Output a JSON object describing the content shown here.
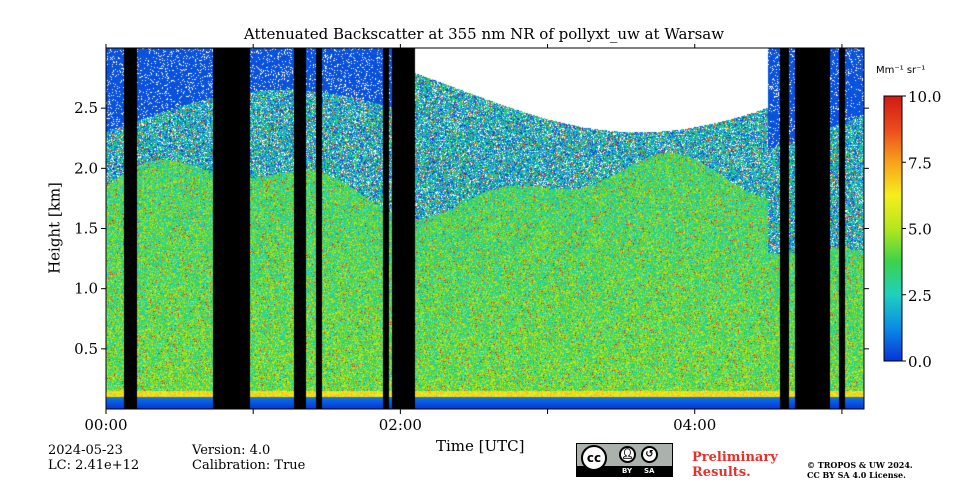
{
  "chart_data": {
    "type": "heatmap",
    "title": "Attenuated Backscatter at 355 nm NR of pollyxt_uw at Warsaw",
    "xlabel": "Time [UTC]",
    "ylabel": "Height [km]",
    "xlim_hours": [
      0.0,
      5.15
    ],
    "ylim_km": [
      0.0,
      3.0
    ],
    "x_ticks": [
      {
        "value": 0,
        "label": "00:00"
      },
      {
        "value": 1,
        "label": ""
      },
      {
        "value": 2,
        "label": "02:00"
      },
      {
        "value": 3,
        "label": ""
      },
      {
        "value": 4,
        "label": "04:00"
      },
      {
        "value": 5,
        "label": ""
      }
    ],
    "y_ticks": [
      {
        "value": 0.5,
        "label": "0.5"
      },
      {
        "value": 1.0,
        "label": "1.0"
      },
      {
        "value": 1.5,
        "label": "1.5"
      },
      {
        "value": 2.0,
        "label": "2.0"
      },
      {
        "value": 2.5,
        "label": "2.5"
      }
    ],
    "colorbar": {
      "unit_label": "Mm⁻¹ sr⁻¹",
      "range": [
        0.0,
        10.0
      ],
      "ticks": [
        {
          "value": 0.0,
          "label": "0.0"
        },
        {
          "value": 2.5,
          "label": "2.5"
        },
        {
          "value": 5.0,
          "label": "5.0"
        },
        {
          "value": 7.5,
          "label": "7.5"
        },
        {
          "value": 10.0,
          "label": "10.0"
        }
      ],
      "colormap": [
        "#0a32d8",
        "#0a8ce6",
        "#1fd0c0",
        "#3cd24a",
        "#b5e61d",
        "#f5ee1e",
        "#f7a21c",
        "#ec4a1d",
        "#d01a12"
      ]
    },
    "no_data_intervals_hours": [
      [
        0.12,
        0.21
      ],
      [
        0.73,
        0.98
      ],
      [
        1.28,
        1.36
      ],
      [
        1.43,
        1.47
      ],
      [
        1.88,
        1.92
      ],
      [
        1.94,
        2.1
      ],
      [
        4.58,
        4.64
      ],
      [
        4.68,
        4.92
      ],
      [
        4.98,
        5.02
      ]
    ],
    "field_profile": {
      "near_surface_top_km": 0.1,
      "near_surface_value": 1.0,
      "surface_layer_top_km": 0.15,
      "surface_layer_value": 6.5,
      "aerosol_layer_top_km": 1.85,
      "aerosol_layer_value": 4.2,
      "upper_layer_top_km": 2.3,
      "upper_layer_value": 2.0,
      "clear_sky_value": 0.3
    }
  },
  "footer": {
    "date": "2024-05-23",
    "lc": "LC: 2.41e+12",
    "version": "Version: 4.0",
    "calibration": "Calibration: True",
    "preliminary_line1": "Preliminary",
    "preliminary_line2": "Results.",
    "copyright_line1": "© TROPOS & UW 2024.",
    "copyright_line2": "CC BY SA 4.0 License.",
    "license": {
      "cc": "cc",
      "by": "BY",
      "sa": "SA"
    }
  }
}
